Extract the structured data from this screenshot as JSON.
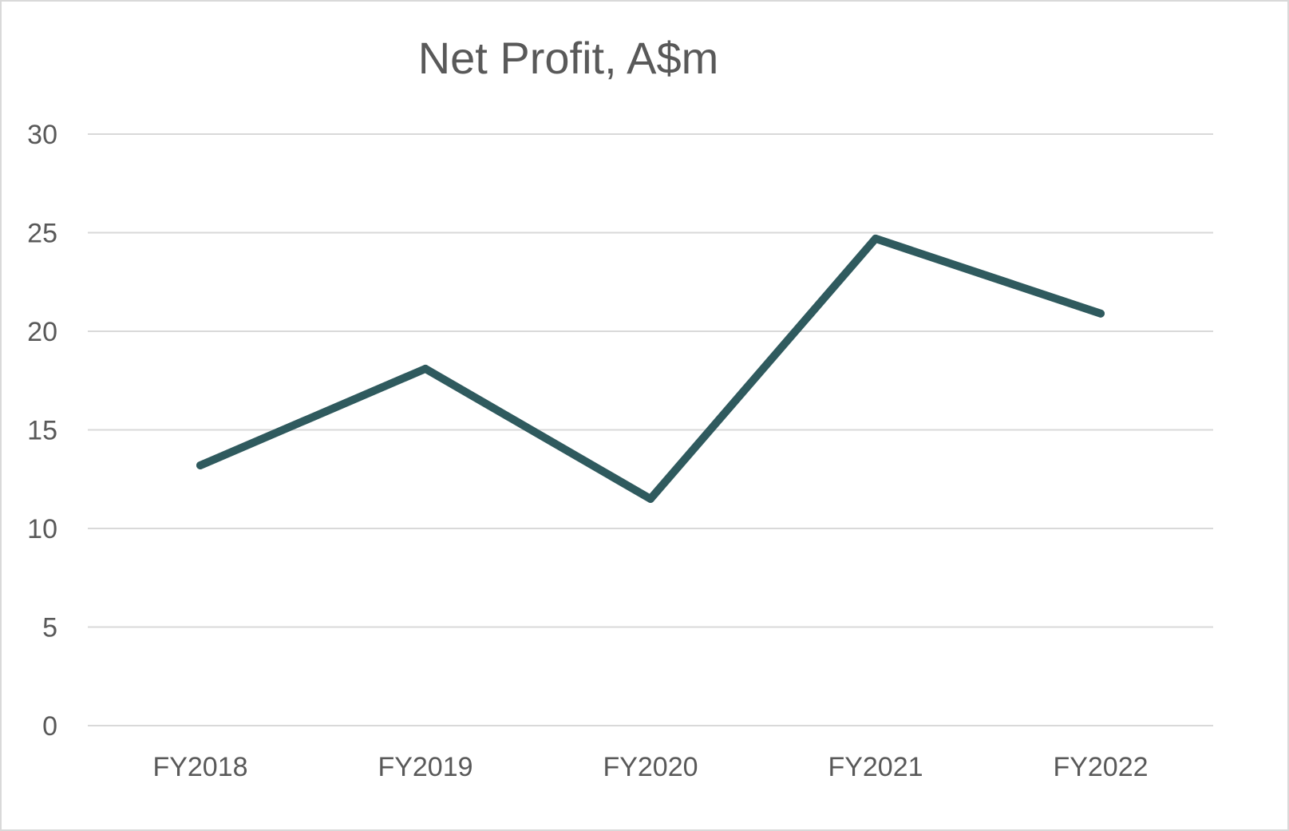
{
  "chart_data": {
    "type": "line",
    "title": "Net Profit, A$m",
    "xlabel": "",
    "ylabel": "",
    "categories": [
      "FY2018",
      "FY2019",
      "FY2020",
      "FY2021",
      "FY2022"
    ],
    "series": [
      {
        "values": [
          13.2,
          18.1,
          11.5,
          24.7,
          20.9
        ],
        "color": "#2f5a5e"
      }
    ],
    "ylim": [
      0,
      30
    ],
    "yticks": [
      0,
      5,
      10,
      15,
      20,
      25,
      30
    ],
    "grid": true,
    "gridColor": "#d9d9d9",
    "legend": "none"
  }
}
